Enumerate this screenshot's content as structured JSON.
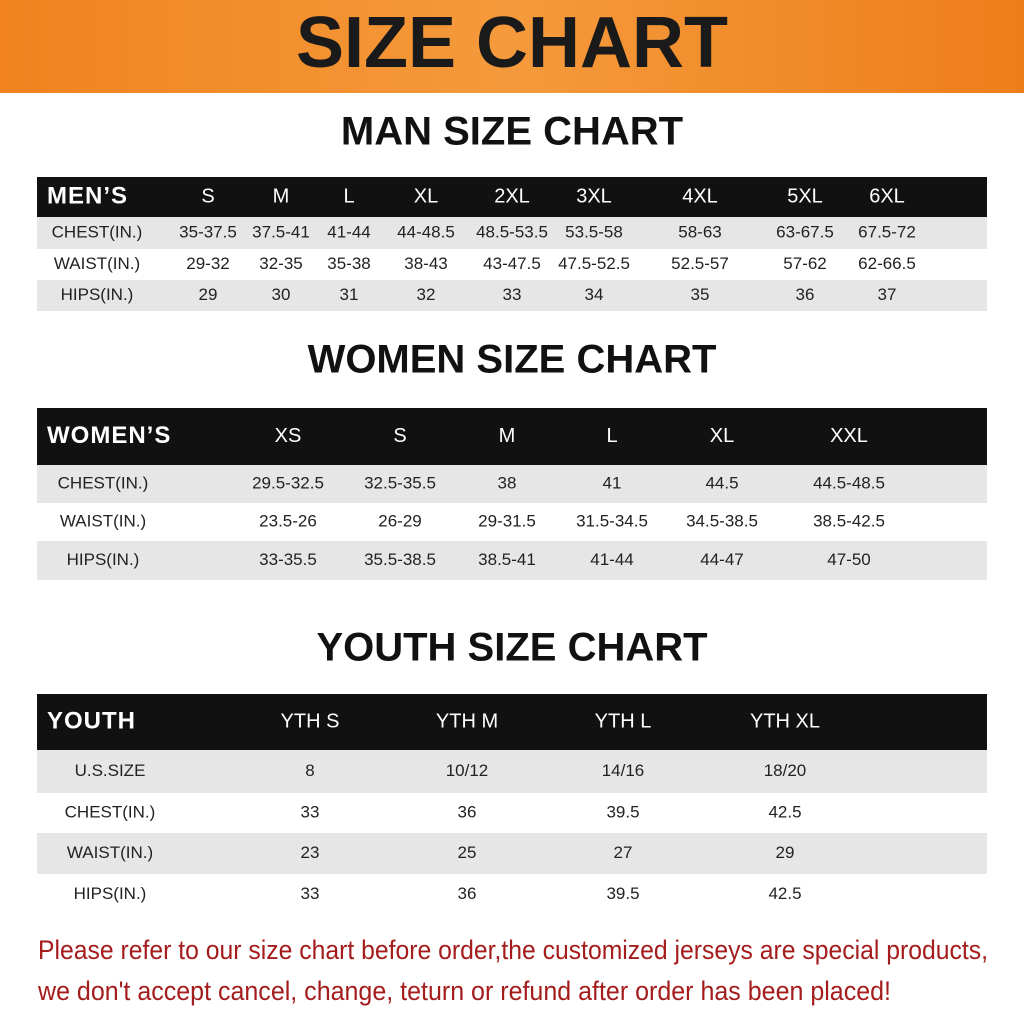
{
  "header": {
    "title": "SIZE CHART"
  },
  "tables": [
    {
      "title": "MAN SIZE CHART",
      "columns": [
        "MEN’S",
        "S",
        "M",
        "L",
        "XL",
        "2XL",
        "3XL",
        "4XL",
        "5XL",
        "6XL"
      ],
      "rows": [
        [
          "CHEST(IN.)",
          "35-37.5",
          "37.5-41",
          "41-44",
          "44-48.5",
          "48.5-53.5",
          "53.5-58",
          "58-63",
          "63-67.5",
          "67.5-72"
        ],
        [
          "WAIST(IN.)",
          "29-32",
          "32-35",
          "35-38",
          "38-43",
          "43-47.5",
          "47.5-52.5",
          "52.5-57",
          "57-62",
          "62-66.5"
        ],
        [
          "HIPS(IN.)",
          "29",
          "30",
          "31",
          "32",
          "33",
          "34",
          "35",
          "36",
          "37"
        ]
      ]
    },
    {
      "title": "WOMEN SIZE CHART",
      "columns": [
        "WOMEN’S",
        "XS",
        "S",
        "M",
        "L",
        "XL",
        "XXL"
      ],
      "rows": [
        [
          "CHEST(IN.)",
          "29.5-32.5",
          "32.5-35.5",
          "38",
          "41",
          "44.5",
          "44.5-48.5"
        ],
        [
          "WAIST(IN.)",
          "23.5-26",
          "26-29",
          "29-31.5",
          "31.5-34.5",
          "34.5-38.5",
          "38.5-42.5"
        ],
        [
          "HIPS(IN.)",
          "33-35.5",
          "35.5-38.5",
          "38.5-41",
          "41-44",
          "44-47",
          "47-50"
        ]
      ]
    },
    {
      "title": "YOUTH SIZE CHART",
      "columns": [
        "YOUTH",
        "YTH S",
        "YTH M",
        "YTH L",
        "YTH XL"
      ],
      "rows": [
        [
          "U.S.SIZE",
          "8",
          "10/12",
          "14/16",
          "18/20"
        ],
        [
          "CHEST(IN.)",
          "33",
          "36",
          "39.5",
          "42.5"
        ],
        [
          "WAIST(IN.)",
          "23",
          "25",
          "27",
          "29"
        ],
        [
          "HIPS(IN.)",
          "33",
          "36",
          "39.5",
          "42.5"
        ]
      ]
    }
  ],
  "note": [
    "Please refer to our size chart before order,the customized jerseys are special products,",
    "we don't accept cancel, change, teturn or refund after order has been placed!"
  ]
}
